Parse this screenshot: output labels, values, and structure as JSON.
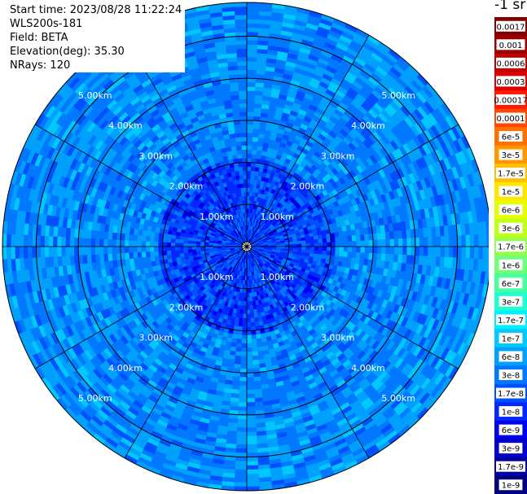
{
  "header": {
    "start_time": "Start time: 2023/08/28 11:22:24",
    "instrument": "WLS200s-181",
    "field": "Field: BETA",
    "elevation": "Elevation(deg): 35.30",
    "nrays": "NRays: 120"
  },
  "chart_data": {
    "type": "heatmap",
    "subtype": "polar-ppi",
    "field": "BETA",
    "elevation_deg": 35.3,
    "n_rays": 120,
    "colorbar_unit": "-1 sr",
    "range_rings": [
      "1.00km",
      "2.00km",
      "3.00km",
      "4.00km",
      "5.00km"
    ],
    "range_rings_km": [
      1,
      2,
      3,
      4,
      5
    ],
    "max_range_km": 5.8,
    "spoke_angles_deg": [
      0,
      30,
      60,
      90,
      120,
      150,
      180,
      210,
      240,
      270,
      300,
      330
    ],
    "colorbar_labels": [
      "0.0017",
      "0.001",
      "0.0006",
      "0.0003",
      "0.00017",
      "0.0001",
      "6e-5",
      "3e-5",
      "1.7e-5",
      "1e-5",
      "6e-6",
      "3e-6",
      "1.7e-6",
      "1e-6",
      "6e-7",
      "3e-7",
      "1.7e-7",
      "1e-7",
      "6e-8",
      "3e-8",
      "1.7e-8",
      "1e-8",
      "6e-9",
      "3e-9",
      "1.7e-9",
      "1e-9"
    ],
    "colorbar_colors": [
      "#800000",
      "#9a0000",
      "#c00000",
      "#e00000",
      "#ff1a00",
      "#ff4800",
      "#ff7000",
      "#ff9800",
      "#ffc000",
      "#ffe600",
      "#e6ff00",
      "#bfff1a",
      "#97ff4a",
      "#6fff78",
      "#48ffa0",
      "#20ffd0",
      "#00f0ff",
      "#00c8ff",
      "#00a0ff",
      "#0078ff",
      "#0050ff",
      "#0028ff",
      "#0000f0",
      "#0000c8",
      "#0000a0",
      "#000080"
    ],
    "dominant_values": "mostly 1e-8 to 1e-7 (blue), darker blue near center"
  }
}
